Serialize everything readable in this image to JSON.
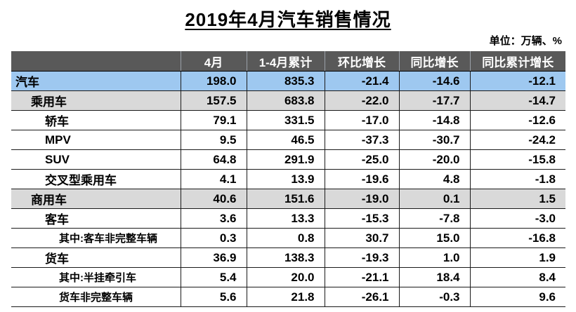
{
  "chart_data": {
    "type": "table",
    "title": "2019年4月汽车销售情况",
    "unit_note": "单位：万辆、%",
    "columns": [
      "",
      "4月",
      "1-4月累计",
      "环比增长",
      "同比增长",
      "同比累计增长"
    ],
    "rows": [
      {
        "label": "汽车",
        "indent": 0,
        "highlight": "blue",
        "small": false,
        "values": [
          "198.0",
          "835.3",
          "-21.4",
          "-14.6",
          "-12.1"
        ]
      },
      {
        "label": "乘用车",
        "indent": 1,
        "highlight": "gray",
        "small": false,
        "values": [
          "157.5",
          "683.8",
          "-22.0",
          "-17.7",
          "-14.7"
        ]
      },
      {
        "label": "轿车",
        "indent": 2,
        "highlight": "none",
        "small": false,
        "values": [
          "79.1",
          "331.5",
          "-17.0",
          "-14.8",
          "-12.6"
        ]
      },
      {
        "label": "MPV",
        "indent": 2,
        "highlight": "none",
        "small": false,
        "values": [
          "9.5",
          "46.5",
          "-37.3",
          "-30.7",
          "-24.2"
        ]
      },
      {
        "label": "SUV",
        "indent": 2,
        "highlight": "none",
        "small": false,
        "values": [
          "64.8",
          "291.9",
          "-25.0",
          "-20.0",
          "-15.8"
        ]
      },
      {
        "label": "交叉型乘用车",
        "indent": 2,
        "highlight": "none",
        "small": false,
        "values": [
          "4.1",
          "13.9",
          "-19.6",
          "4.8",
          "-1.8"
        ]
      },
      {
        "label": "商用车",
        "indent": 1,
        "highlight": "gray",
        "small": false,
        "values": [
          "40.6",
          "151.6",
          "-19.0",
          "0.1",
          "1.5"
        ]
      },
      {
        "label": "客车",
        "indent": 2,
        "highlight": "none",
        "small": false,
        "values": [
          "3.6",
          "13.3",
          "-15.3",
          "-7.8",
          "-3.0"
        ]
      },
      {
        "label": "其中:客车非完整车辆",
        "indent": 3,
        "highlight": "none",
        "small": true,
        "values": [
          "0.3",
          "0.8",
          "30.7",
          "15.0",
          "-16.8"
        ]
      },
      {
        "label": "货车",
        "indent": 2,
        "highlight": "none",
        "small": false,
        "values": [
          "36.9",
          "138.3",
          "-19.3",
          "1.0",
          "1.9"
        ]
      },
      {
        "label": "其中:半挂牵引车",
        "indent": 3,
        "highlight": "none",
        "small": true,
        "values": [
          "5.4",
          "20.0",
          "-21.1",
          "18.4",
          "8.4"
        ]
      },
      {
        "label": "货车非完整车辆",
        "indent": 3,
        "highlight": "none",
        "small": true,
        "values": [
          "5.6",
          "21.8",
          "-26.1",
          "-0.3",
          "9.6"
        ]
      }
    ]
  },
  "colors": {
    "header_bg": "#595959",
    "header_text": "#ffffff",
    "total_row_highlight": "#9ec8f0",
    "section_row_highlight": "#d9d9d9",
    "border": "#1a1a1a",
    "text": "#000000"
  }
}
